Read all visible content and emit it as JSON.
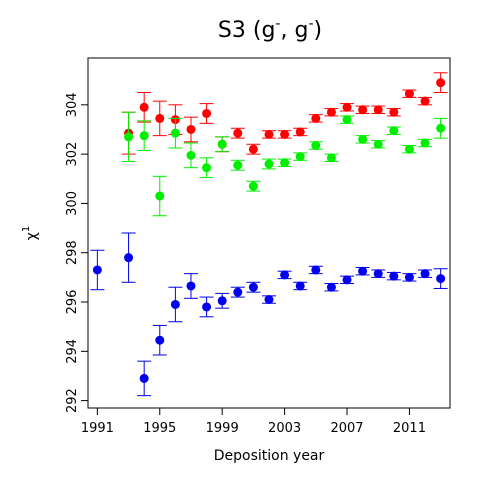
{
  "chart_data": {
    "type": "scatter",
    "title": {
      "main": "S3  (g",
      "sup1": "-",
      "mid": ", g",
      "sup2": "-",
      "end": ")"
    },
    "xlabel": "Deposition year",
    "ylabel": {
      "base": "χ",
      "sup": "1"
    },
    "xlim": [
      1990.4,
      2013.6
    ],
    "ylim": [
      291.7,
      305.9
    ],
    "xticks": [
      1991,
      1995,
      1999,
      2003,
      2007,
      2011
    ],
    "yticks": [
      292,
      294,
      296,
      298,
      300,
      302,
      304
    ],
    "grid": false,
    "legend": "none",
    "series": [
      {
        "color": "#ff0000",
        "points": [
          {
            "x": 1993,
            "y": 302.85,
            "err": 0.85
          },
          {
            "x": 1994,
            "y": 303.9,
            "err": 0.6
          },
          {
            "x": 1995,
            "y": 303.45,
            "err": 0.7
          },
          {
            "x": 1996,
            "y": 303.4,
            "err": 0.6
          },
          {
            "x": 1997,
            "y": 303.0,
            "err": 0.5
          },
          {
            "x": 1998,
            "y": 303.65,
            "err": 0.4
          },
          {
            "x": 1999,
            "y": 302.4,
            "err": 0.3
          },
          {
            "x": 2000,
            "y": 302.85,
            "err": 0.2
          },
          {
            "x": 2001,
            "y": 302.2,
            "err": 0.2
          },
          {
            "x": 2002,
            "y": 302.8,
            "err": 0.15
          },
          {
            "x": 2003,
            "y": 302.8,
            "err": 0.15
          },
          {
            "x": 2004,
            "y": 302.9,
            "err": 0.15
          },
          {
            "x": 2005,
            "y": 303.45,
            "err": 0.15
          },
          {
            "x": 2006,
            "y": 303.7,
            "err": 0.15
          },
          {
            "x": 2007,
            "y": 303.9,
            "err": 0.15
          },
          {
            "x": 2008,
            "y": 303.8,
            "err": 0.15
          },
          {
            "x": 2009,
            "y": 303.8,
            "err": 0.15
          },
          {
            "x": 2010,
            "y": 303.7,
            "err": 0.15
          },
          {
            "x": 2011,
            "y": 304.45,
            "err": 0.15
          },
          {
            "x": 2012,
            "y": 304.15,
            "err": 0.15
          },
          {
            "x": 2013,
            "y": 304.9,
            "err": 0.4
          }
        ]
      },
      {
        "color": "#00ee00",
        "points": [
          {
            "x": 1993,
            "y": 302.7,
            "err": 1.0
          },
          {
            "x": 1994,
            "y": 302.75,
            "err": 0.6
          },
          {
            "x": 1995,
            "y": 300.3,
            "err": 0.8
          },
          {
            "x": 1996,
            "y": 302.85,
            "err": 0.6
          },
          {
            "x": 1997,
            "y": 301.95,
            "err": 0.5
          },
          {
            "x": 1998,
            "y": 301.45,
            "err": 0.4
          },
          {
            "x": 1999,
            "y": 302.4,
            "err": 0.3
          },
          {
            "x": 2000,
            "y": 301.55,
            "err": 0.2
          },
          {
            "x": 2001,
            "y": 300.7,
            "err": 0.2
          },
          {
            "x": 2002,
            "y": 301.6,
            "err": 0.2
          },
          {
            "x": 2003,
            "y": 301.65,
            "err": 0.15
          },
          {
            "x": 2004,
            "y": 301.9,
            "err": 0.15
          },
          {
            "x": 2005,
            "y": 302.35,
            "err": 0.15
          },
          {
            "x": 2006,
            "y": 301.85,
            "err": 0.15
          },
          {
            "x": 2007,
            "y": 303.4,
            "err": 0.15
          },
          {
            "x": 2008,
            "y": 302.6,
            "err": 0.15
          },
          {
            "x": 2009,
            "y": 302.4,
            "err": 0.15
          },
          {
            "x": 2010,
            "y": 302.95,
            "err": 0.15
          },
          {
            "x": 2011,
            "y": 302.2,
            "err": 0.15
          },
          {
            "x": 2012,
            "y": 302.45,
            "err": 0.15
          },
          {
            "x": 2013,
            "y": 303.05,
            "err": 0.4
          }
        ]
      },
      {
        "color": "#0000ee",
        "points": [
          {
            "x": 1991,
            "y": 297.3,
            "err": 0.8
          },
          {
            "x": 1993,
            "y": 297.8,
            "err": 1.0
          },
          {
            "x": 1994,
            "y": 292.9,
            "err": 0.7
          },
          {
            "x": 1995,
            "y": 294.45,
            "err": 0.6
          },
          {
            "x": 1996,
            "y": 295.9,
            "err": 0.7
          },
          {
            "x": 1997,
            "y": 296.65,
            "err": 0.5
          },
          {
            "x": 1998,
            "y": 295.8,
            "err": 0.4
          },
          {
            "x": 1999,
            "y": 296.05,
            "err": 0.3
          },
          {
            "x": 2000,
            "y": 296.4,
            "err": 0.2
          },
          {
            "x": 2001,
            "y": 296.6,
            "err": 0.2
          },
          {
            "x": 2002,
            "y": 296.1,
            "err": 0.15
          },
          {
            "x": 2003,
            "y": 297.1,
            "err": 0.15
          },
          {
            "x": 2004,
            "y": 296.65,
            "err": 0.15
          },
          {
            "x": 2005,
            "y": 297.3,
            "err": 0.15
          },
          {
            "x": 2006,
            "y": 296.6,
            "err": 0.15
          },
          {
            "x": 2007,
            "y": 296.9,
            "err": 0.15
          },
          {
            "x": 2008,
            "y": 297.25,
            "err": 0.15
          },
          {
            "x": 2009,
            "y": 297.15,
            "err": 0.15
          },
          {
            "x": 2010,
            "y": 297.05,
            "err": 0.15
          },
          {
            "x": 2011,
            "y": 297.0,
            "err": 0.15
          },
          {
            "x": 2012,
            "y": 297.15,
            "err": 0.15
          },
          {
            "x": 2013,
            "y": 296.95,
            "err": 0.4
          }
        ]
      }
    ]
  }
}
